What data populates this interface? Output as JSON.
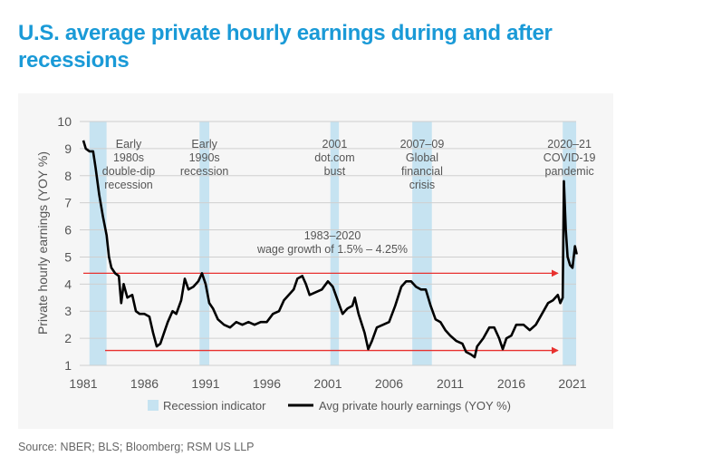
{
  "title": "U.S. average private hourly earnings during and after recessions",
  "source": "Source: NBER; BLS; Bloomberg; RSM US LLP",
  "colors": {
    "title": "#1a9ad7",
    "recession": "#c6e3f1",
    "line": "#000000",
    "arrow": "#e8312f",
    "grid": "#cfcfcf"
  },
  "chart_data": {
    "type": "line",
    "ylabel": "Private hourly earnings (YOY %)",
    "xlim": [
      1981,
      2021.4
    ],
    "ylim": [
      1,
      10
    ],
    "grid": true,
    "legend_position": "bottom",
    "x_ticks": [
      "1981",
      "1986",
      "1991",
      "1996",
      "2001",
      "2006",
      "2011",
      "2016",
      "2021"
    ],
    "y_ticks": [
      "1",
      "2",
      "3",
      "4",
      "5",
      "6",
      "7",
      "8",
      "9",
      "10"
    ],
    "legend": {
      "recession": "Recession indicator",
      "series": "Avg private hourly earnings (YOY %)"
    },
    "recessions": [
      {
        "start": 1981.5,
        "end": 1982.9,
        "label": [
          "Early",
          "1980s",
          "double-dip",
          "recession"
        ]
      },
      {
        "start": 1990.5,
        "end": 1991.3,
        "label": [
          "Early",
          "1990s",
          "recession"
        ]
      },
      {
        "start": 2001.2,
        "end": 2001.9,
        "label": [
          "2001",
          "dot.com",
          "bust"
        ]
      },
      {
        "start": 2007.9,
        "end": 2009.5,
        "label": [
          "2007–09",
          "Global",
          "financial",
          "crisis"
        ]
      },
      {
        "start": 2020.2,
        "end": 2021.3,
        "label": [
          "2020–21",
          "COVID-19",
          "pandemic"
        ]
      }
    ],
    "band_annotation": {
      "lines": [
        "1983–2020",
        "wage growth of 1.5% – 4.25%"
      ],
      "upper": 4.4,
      "lower": 1.55,
      "start": 1982.8,
      "end": 2019.8
    },
    "series": [
      {
        "name": "Avg private hourly earnings (YOY %)",
        "points": [
          [
            1981.0,
            9.3
          ],
          [
            1981.2,
            9.0
          ],
          [
            1981.5,
            8.9
          ],
          [
            1981.8,
            8.9
          ],
          [
            1982.0,
            8.3
          ],
          [
            1982.3,
            7.3
          ],
          [
            1982.6,
            6.5
          ],
          [
            1982.9,
            5.8
          ],
          [
            1983.1,
            5.0
          ],
          [
            1983.3,
            4.6
          ],
          [
            1983.6,
            4.4
          ],
          [
            1983.9,
            4.3
          ],
          [
            1984.1,
            3.3
          ],
          [
            1984.3,
            4.0
          ],
          [
            1984.6,
            3.5
          ],
          [
            1985.0,
            3.6
          ],
          [
            1985.3,
            3.0
          ],
          [
            1985.6,
            2.9
          ],
          [
            1986.0,
            2.9
          ],
          [
            1986.4,
            2.8
          ],
          [
            1986.7,
            2.2
          ],
          [
            1987.0,
            1.7
          ],
          [
            1987.3,
            1.8
          ],
          [
            1987.6,
            2.2
          ],
          [
            1987.9,
            2.6
          ],
          [
            1988.3,
            3.0
          ],
          [
            1988.6,
            2.9
          ],
          [
            1989.0,
            3.4
          ],
          [
            1989.3,
            4.2
          ],
          [
            1989.6,
            3.8
          ],
          [
            1990.0,
            3.9
          ],
          [
            1990.4,
            4.1
          ],
          [
            1990.7,
            4.4
          ],
          [
            1991.0,
            4.0
          ],
          [
            1991.3,
            3.3
          ],
          [
            1991.6,
            3.1
          ],
          [
            1992.0,
            2.7
          ],
          [
            1992.5,
            2.5
          ],
          [
            1993.0,
            2.4
          ],
          [
            1993.5,
            2.6
          ],
          [
            1994.0,
            2.5
          ],
          [
            1994.5,
            2.6
          ],
          [
            1995.0,
            2.5
          ],
          [
            1995.5,
            2.6
          ],
          [
            1996.0,
            2.6
          ],
          [
            1996.5,
            2.9
          ],
          [
            1997.0,
            3.0
          ],
          [
            1997.4,
            3.4
          ],
          [
            1997.8,
            3.6
          ],
          [
            1998.2,
            3.8
          ],
          [
            1998.5,
            4.2
          ],
          [
            1998.9,
            4.3
          ],
          [
            1999.2,
            4.0
          ],
          [
            1999.5,
            3.6
          ],
          [
            2000.0,
            3.7
          ],
          [
            2000.5,
            3.8
          ],
          [
            2001.0,
            4.1
          ],
          [
            2001.4,
            3.9
          ],
          [
            2001.8,
            3.4
          ],
          [
            2002.2,
            2.9
          ],
          [
            2002.6,
            3.1
          ],
          [
            2003.0,
            3.2
          ],
          [
            2003.2,
            3.5
          ],
          [
            2003.5,
            2.9
          ],
          [
            2004.0,
            2.2
          ],
          [
            2004.3,
            1.6
          ],
          [
            2004.6,
            1.9
          ],
          [
            2005.0,
            2.4
          ],
          [
            2005.5,
            2.5
          ],
          [
            2006.0,
            2.6
          ],
          [
            2006.5,
            3.2
          ],
          [
            2007.0,
            3.9
          ],
          [
            2007.4,
            4.1
          ],
          [
            2007.8,
            4.1
          ],
          [
            2008.2,
            3.9
          ],
          [
            2008.6,
            3.8
          ],
          [
            2009.0,
            3.8
          ],
          [
            2009.4,
            3.2
          ],
          [
            2009.8,
            2.7
          ],
          [
            2010.2,
            2.6
          ],
          [
            2010.6,
            2.3
          ],
          [
            2011.0,
            2.1
          ],
          [
            2011.5,
            1.9
          ],
          [
            2012.0,
            1.8
          ],
          [
            2012.3,
            1.5
          ],
          [
            2012.7,
            1.4
          ],
          [
            2013.0,
            1.3
          ],
          [
            2013.2,
            1.7
          ],
          [
            2013.7,
            2.0
          ],
          [
            2014.2,
            2.4
          ],
          [
            2014.6,
            2.4
          ],
          [
            2015.0,
            2.0
          ],
          [
            2015.3,
            1.6
          ],
          [
            2015.6,
            2.0
          ],
          [
            2016.0,
            2.1
          ],
          [
            2016.4,
            2.5
          ],
          [
            2017.0,
            2.5
          ],
          [
            2017.5,
            2.3
          ],
          [
            2018.0,
            2.5
          ],
          [
            2018.5,
            2.9
          ],
          [
            2019.0,
            3.3
          ],
          [
            2019.4,
            3.4
          ],
          [
            2019.8,
            3.6
          ],
          [
            2020.0,
            3.3
          ],
          [
            2020.2,
            3.5
          ],
          [
            2020.3,
            7.8
          ],
          [
            2020.45,
            6.0
          ],
          [
            2020.6,
            5.0
          ],
          [
            2020.8,
            4.7
          ],
          [
            2021.0,
            4.6
          ],
          [
            2021.2,
            5.4
          ],
          [
            2021.35,
            5.1
          ]
        ]
      }
    ]
  }
}
